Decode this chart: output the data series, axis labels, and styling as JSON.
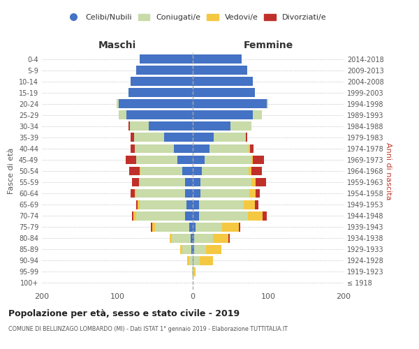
{
  "age_groups": [
    "100+",
    "95-99",
    "90-94",
    "85-89",
    "80-84",
    "75-79",
    "70-74",
    "65-69",
    "60-64",
    "55-59",
    "50-54",
    "45-49",
    "40-44",
    "35-39",
    "30-34",
    "25-29",
    "20-24",
    "15-19",
    "10-14",
    "5-9",
    "0-4"
  ],
  "birth_years": [
    "≤ 1918",
    "1919-1923",
    "1924-1928",
    "1929-1933",
    "1934-1938",
    "1939-1943",
    "1944-1948",
    "1949-1953",
    "1954-1958",
    "1959-1963",
    "1964-1968",
    "1969-1973",
    "1974-1978",
    "1979-1983",
    "1984-1988",
    "1989-1993",
    "1994-1998",
    "1999-2003",
    "2004-2008",
    "2009-2013",
    "2014-2018"
  ],
  "males": {
    "celibi": [
      0,
      0,
      0,
      2,
      3,
      5,
      10,
      8,
      10,
      10,
      14,
      20,
      25,
      38,
      58,
      88,
      98,
      85,
      82,
      75,
      70
    ],
    "coniugati": [
      0,
      1,
      5,
      12,
      25,
      45,
      65,
      62,
      65,
      60,
      55,
      55,
      52,
      40,
      25,
      10,
      3,
      0,
      0,
      0,
      0
    ],
    "vedovi": [
      0,
      0,
      2,
      3,
      3,
      4,
      4,
      3,
      2,
      1,
      1,
      0,
      0,
      0,
      0,
      0,
      0,
      0,
      0,
      0,
      0
    ],
    "divorziati": [
      0,
      0,
      0,
      0,
      0,
      2,
      2,
      2,
      5,
      10,
      14,
      14,
      5,
      4,
      2,
      0,
      0,
      0,
      0,
      0,
      0
    ]
  },
  "females": {
    "nubili": [
      0,
      0,
      1,
      2,
      2,
      4,
      8,
      8,
      10,
      10,
      12,
      16,
      22,
      28,
      50,
      80,
      98,
      82,
      80,
      72,
      65
    ],
    "coniugate": [
      0,
      2,
      8,
      16,
      25,
      35,
      65,
      60,
      65,
      68,
      62,
      62,
      52,
      42,
      28,
      12,
      2,
      0,
      0,
      0,
      0
    ],
    "vedove": [
      0,
      2,
      18,
      20,
      20,
      22,
      20,
      14,
      8,
      5,
      4,
      2,
      2,
      0,
      0,
      0,
      0,
      0,
      0,
      0,
      0
    ],
    "divorziate": [
      0,
      0,
      0,
      0,
      2,
      2,
      5,
      5,
      6,
      14,
      14,
      14,
      5,
      2,
      0,
      0,
      0,
      0,
      0,
      0,
      0
    ]
  },
  "colors": {
    "celibi_nubili": "#4472C4",
    "coniugati": "#c8dba8",
    "vedovi": "#f5c842",
    "divorziati": "#c0302a"
  },
  "xlim": 200,
  "title": "Popolazione per età, sesso e stato civile - 2019",
  "subtitle": "COMUNE DI BELLINZAGO LOMBARDO (MI) - Dati ISTAT 1° gennaio 2019 - Elaborazione TUTTITALIA.IT",
  "xlabel_left": "Maschi",
  "xlabel_right": "Femmine",
  "ylabel_left": "Fasce di età",
  "ylabel_right": "Anni di nascita",
  "legend_labels": [
    "Celibi/Nubili",
    "Coniugati/e",
    "Vedovi/e",
    "Divorziati/e"
  ],
  "background_color": "#ffffff",
  "grid_color": "#cccccc"
}
